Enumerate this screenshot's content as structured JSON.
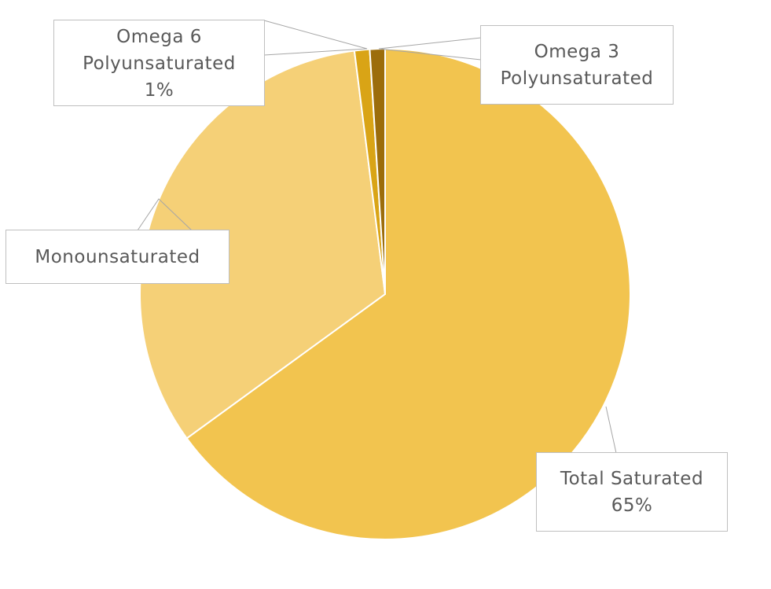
{
  "chart_data": {
    "type": "pie",
    "title": "",
    "start_angle_deg": 0,
    "direction": "clockwise",
    "slices": [
      {
        "name": "Total Saturated",
        "value": 65,
        "color": "#f2c44f",
        "label_lines": [
          "Total Saturated",
          "65%"
        ]
      },
      {
        "name": "Monounsaturated",
        "value": 33,
        "color": "#f5d077",
        "label_lines": [
          "Monounsaturated"
        ]
      },
      {
        "name": "Omega 6 Polyunsaturated",
        "value": 1,
        "color": "#d9a416",
        "label_lines": [
          "Omega 6",
          "Polyunsaturated",
          "1%"
        ]
      },
      {
        "name": "Omega 3 Polyunsaturated",
        "value": 1,
        "color": "#9c6d0b",
        "label_lines": [
          "Omega 3",
          "Polyunsaturated"
        ]
      }
    ],
    "legend": "none",
    "data_labels": "callouts"
  },
  "labels": {
    "saturated": {
      "line1": "Total Saturated",
      "line2": "65%"
    },
    "mono": {
      "line1": "Monounsaturated"
    },
    "omega6": {
      "line1": "Omega 6",
      "line2": "Polyunsaturated",
      "line3": "1%"
    },
    "omega3": {
      "line1": "Omega 3",
      "line2": "Polyunsaturated"
    }
  }
}
